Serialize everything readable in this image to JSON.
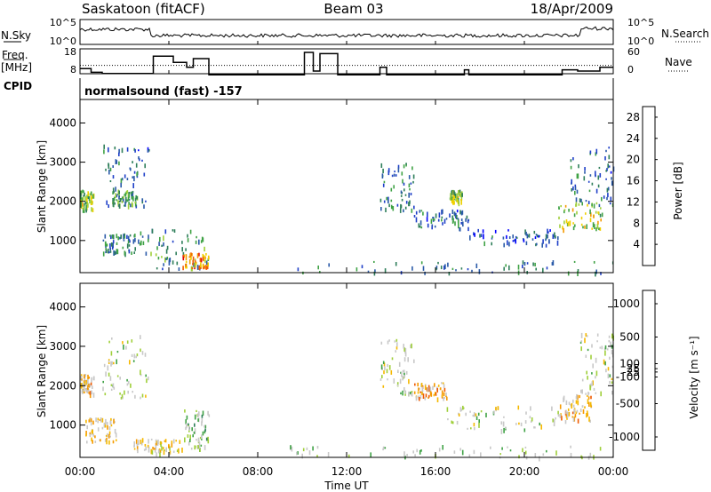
{
  "header": {
    "station": "Saskatoon (fitACF)",
    "beam": "Beam 03",
    "date": "18/Apr/2009"
  },
  "labels": {
    "nsky": "N.Sky",
    "nsearch": "N.Search",
    "freq": "Freq.",
    "freq_unit": "[MHz]",
    "nave": "Nave",
    "cpid": "CPID",
    "cpid_value": "normalsound (fast) -157",
    "slant_range": "Slant Range [km]",
    "time_axis": "Time UT",
    "power": "Power [dB]",
    "velocity": "Velocity  [m s⁻¹]"
  },
  "noise_panel": {
    "left_ticks": [
      "10^5",
      "10^0"
    ],
    "right_ticks": [
      "10^5",
      "10^0"
    ]
  },
  "freq_panel": {
    "left_ticks": [
      "18",
      "8"
    ],
    "right_ticks": [
      "60",
      "0"
    ],
    "freq_segments": [
      {
        "start": 0.0,
        "end": 0.5,
        "value": 11.5
      },
      {
        "start": 0.5,
        "end": 1.0,
        "value": 10.0
      },
      {
        "start": 1.0,
        "end": 3.3,
        "value": 9.5
      },
      {
        "start": 3.3,
        "end": 4.2,
        "value": 16.5
      },
      {
        "start": 4.2,
        "end": 4.8,
        "value": 14.0
      },
      {
        "start": 4.8,
        "end": 5.1,
        "value": 12.0
      },
      {
        "start": 5.1,
        "end": 5.8,
        "value": 15.5
      },
      {
        "start": 5.8,
        "end": 10.1,
        "value": 9.0
      },
      {
        "start": 10.1,
        "end": 10.5,
        "value": 18.0
      },
      {
        "start": 10.5,
        "end": 10.8,
        "value": 10.5
      },
      {
        "start": 10.8,
        "end": 11.6,
        "value": 17.5
      },
      {
        "start": 11.6,
        "end": 13.5,
        "value": 9.0
      },
      {
        "start": 13.5,
        "end": 13.8,
        "value": 12.0
      },
      {
        "start": 13.8,
        "end": 17.3,
        "value": 9.0
      },
      {
        "start": 17.3,
        "end": 17.5,
        "value": 11.0
      },
      {
        "start": 17.5,
        "end": 21.7,
        "value": 9.0
      },
      {
        "start": 21.7,
        "end": 22.4,
        "value": 11.0
      },
      {
        "start": 22.4,
        "end": 23.4,
        "value": 10.5
      },
      {
        "start": 23.4,
        "end": 24.0,
        "value": 12.0
      }
    ],
    "nave_reference": 20
  },
  "chart_data": [
    {
      "type": "heatmap",
      "title": "Power",
      "xlabel": "Time UT",
      "ylabel": "Slant Range [km]",
      "xlim": [
        0,
        24
      ],
      "ylim": [
        180,
        4600
      ],
      "x_ticks": [
        "00:00",
        "04:00",
        "08:00",
        "12:00",
        "16:00",
        "20:00",
        "00:00"
      ],
      "y_ticks": [
        1000,
        2000,
        3000,
        4000
      ],
      "colorbar": {
        "label": "Power [dB]",
        "ticks": [
          4,
          8,
          12,
          16,
          20,
          24,
          28
        ],
        "range": [
          0,
          30
        ],
        "colors": [
          "#0000ff",
          "#1e3fc8",
          "#2a5aa8",
          "#2e7e5a",
          "#3fa245",
          "#9fcf3a",
          "#f0d000",
          "#f59a00",
          "#f05a00",
          "#e00000"
        ]
      },
      "scatter_regions": [
        {
          "t0": 0.0,
          "t1": 0.6,
          "r0": 1800,
          "r1": 2300,
          "value": 16
        },
        {
          "t0": 1.0,
          "t1": 3.1,
          "r0": 1900,
          "r1": 3500,
          "value": 8
        },
        {
          "t0": 1.4,
          "t1": 2.6,
          "r0": 1900,
          "r1": 2300,
          "value": 13
        },
        {
          "t0": 1.0,
          "t1": 2.5,
          "r0": 700,
          "r1": 1200,
          "value": 10
        },
        {
          "t0": 2.6,
          "t1": 5.8,
          "r0": 300,
          "r1": 1300,
          "value": 11
        },
        {
          "t0": 4.6,
          "t1": 5.8,
          "r0": 300,
          "r1": 700,
          "value": 23
        },
        {
          "t0": 9.4,
          "t1": 24.0,
          "r0": 200,
          "r1": 500,
          "value": 9
        },
        {
          "t0": 13.5,
          "t1": 15.0,
          "r0": 1800,
          "r1": 3000,
          "value": 9
        },
        {
          "t0": 15.0,
          "t1": 17.5,
          "r0": 1300,
          "r1": 1800,
          "value": 8
        },
        {
          "t0": 16.6,
          "t1": 17.2,
          "r0": 2000,
          "r1": 2300,
          "value": 16
        },
        {
          "t0": 17.5,
          "t1": 21.5,
          "r0": 900,
          "r1": 1300,
          "value": 7
        },
        {
          "t0": 21.5,
          "t1": 23.5,
          "r0": 1300,
          "r1": 2000,
          "value": 17
        },
        {
          "t0": 22.0,
          "t1": 24.0,
          "r0": 1800,
          "r1": 3400,
          "value": 8
        }
      ]
    },
    {
      "type": "heatmap",
      "title": "Velocity",
      "xlabel": "Time UT",
      "ylabel": "Slant Range [km]",
      "xlim": [
        0,
        24
      ],
      "ylim": [
        180,
        4600
      ],
      "x_ticks": [
        "00:00",
        "04:00",
        "08:00",
        "12:00",
        "16:00",
        "20:00",
        "00:00"
      ],
      "y_ticks": [
        1000,
        2000,
        3000,
        4000
      ],
      "colorbar": {
        "label": "Velocity [m s^-1]",
        "ticks": [
          1000,
          500,
          100,
          25,
          -25,
          -100,
          -500,
          -1000
        ],
        "range": [
          -1200,
          1200
        ],
        "colors": [
          "#e00000",
          "#f05a00",
          "#f59a00",
          "#f5b800",
          "#c8c8c8",
          "#c8c8c8",
          "#9fcf3a",
          "#3fa245",
          "#2e7e5a",
          "#1e3fc8",
          "#0000ff"
        ]
      },
      "scatter_regions": [
        {
          "t0": 0.0,
          "t1": 0.6,
          "r0": 1800,
          "r1": 2300,
          "value": -400
        },
        {
          "t0": 1.0,
          "t1": 3.1,
          "r0": 1700,
          "r1": 3300,
          "value": 0
        },
        {
          "t0": 0.2,
          "t1": 1.6,
          "r0": 600,
          "r1": 1200,
          "value": -300
        },
        {
          "t0": 2.4,
          "t1": 4.6,
          "r0": 300,
          "r1": 700,
          "value": -200
        },
        {
          "t0": 4.6,
          "t1": 5.8,
          "r0": 400,
          "r1": 1400,
          "value": 200
        },
        {
          "t0": 9.4,
          "t1": 24.0,
          "r0": 200,
          "r1": 500,
          "value": 50
        },
        {
          "t0": 13.5,
          "t1": 15.0,
          "r0": 1800,
          "r1": 3200,
          "value": 0
        },
        {
          "t0": 15.0,
          "t1": 16.5,
          "r0": 1700,
          "r1": 2100,
          "value": -500
        },
        {
          "t0": 16.5,
          "t1": 21.5,
          "r0": 900,
          "r1": 1500,
          "value": 0
        },
        {
          "t0": 21.5,
          "t1": 23.0,
          "r0": 1100,
          "r1": 1800,
          "value": -450
        },
        {
          "t0": 22.5,
          "t1": 24.0,
          "r0": 1800,
          "r1": 3400,
          "value": 0
        }
      ]
    }
  ]
}
